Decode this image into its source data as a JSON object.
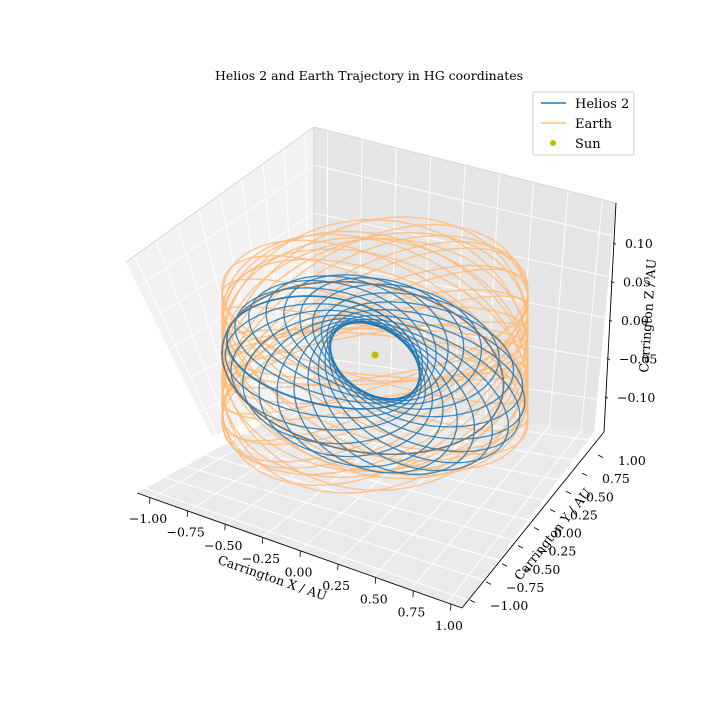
{
  "chart_data": {
    "type": "line",
    "projection": "3d",
    "title": "Helios 2 and Earth Trajectory in HG coordinates",
    "xlabel": "Carrington X / AU",
    "ylabel": "Carrington Y / AU",
    "zlabel": "Carrington Z / AU",
    "xlim": [
      -1.1,
      1.1
    ],
    "ylim": [
      -1.1,
      1.1
    ],
    "zlim": [
      -0.14,
      0.14
    ],
    "x_ticks": [
      "−1.00",
      "−0.75",
      "−0.50",
      "−0.25",
      "0.00",
      "0.25",
      "0.50",
      "0.75",
      "1.00"
    ],
    "y_ticks": [
      "−1.00",
      "−0.75",
      "−0.50",
      "−0.25",
      "0.00",
      "0.25",
      "0.50",
      "0.75",
      "1.00"
    ],
    "z_ticks": [
      "−0.10",
      "−0.05",
      "0.00",
      "0.05",
      "0.10"
    ],
    "grid": true,
    "legend_position": "top-right",
    "series": [
      {
        "name": "Helios 2",
        "kind": "line",
        "color": "#1f77b4",
        "description_values": {
          "perihelion_au": 0.29,
          "aphelion_au": 0.98,
          "z_amplitude_au": 0.06
        }
      },
      {
        "name": "Earth",
        "kind": "line",
        "color": "#ffbb78",
        "description_values": {
          "radius_au": 1.0,
          "z_amplitude_au": 0.12
        }
      },
      {
        "name": "Sun",
        "kind": "scatter",
        "color": "#bfbf00",
        "point": [
          0,
          0,
          0
        ]
      }
    ]
  }
}
